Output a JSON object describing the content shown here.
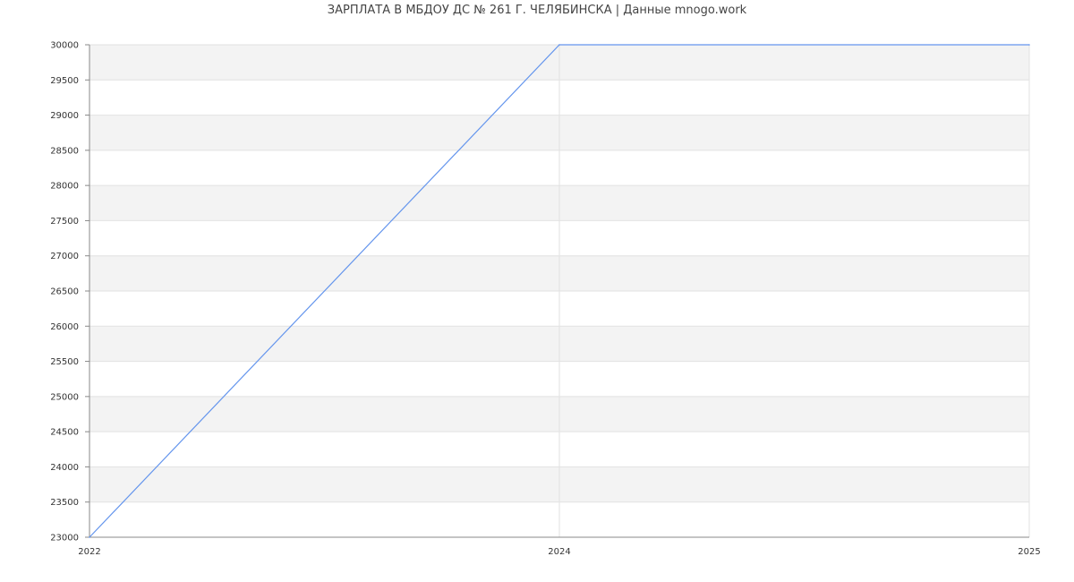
{
  "chart_data": {
    "type": "line",
    "title": "ЗАРПЛАТА В МБДОУ ДС № 261 Г. ЧЕЛЯБИНСКА | Данные mnogo.work",
    "categories": [
      "2022",
      "2024",
      "2025"
    ],
    "values": [
      23000,
      30000,
      30000
    ],
    "ylim": [
      23000,
      30000
    ],
    "yticks": [
      23000,
      23500,
      24000,
      24500,
      25000,
      25500,
      26000,
      26500,
      27000,
      27500,
      28000,
      28500,
      29000,
      29500,
      30000
    ],
    "grid": true,
    "colors": {
      "line": "#6495ed",
      "band": "#f3f3f3",
      "grid": "#e2e2e2",
      "axis": "#888888"
    }
  }
}
